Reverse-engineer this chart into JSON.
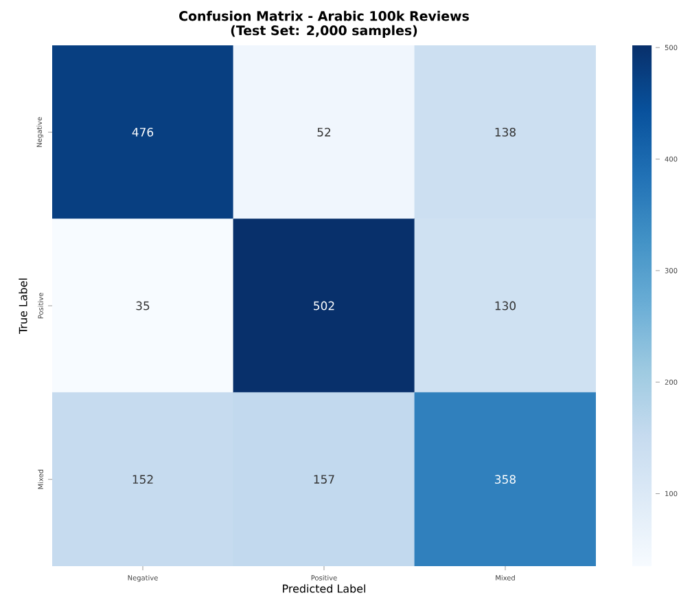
{
  "chart_data": {
    "type": "heatmap",
    "title": "Confusion Matrix - Arabic 100k Reviews",
    "subtitle": "(Test Set: 2,000 samples)",
    "xlabel": "Predicted Label",
    "ylabel": "True Label",
    "categories": [
      "Negative",
      "Positive",
      "Mixed"
    ],
    "y_categories": [
      "Negative",
      "Positive",
      "Mixed"
    ],
    "cells": [
      [
        476,
        52,
        138
      ],
      [
        35,
        502,
        130
      ],
      [
        152,
        157,
        358
      ]
    ],
    "data_labels": true,
    "clim": [
      35,
      502
    ],
    "cticks": [
      100,
      200,
      300,
      400,
      500
    ]
  }
}
